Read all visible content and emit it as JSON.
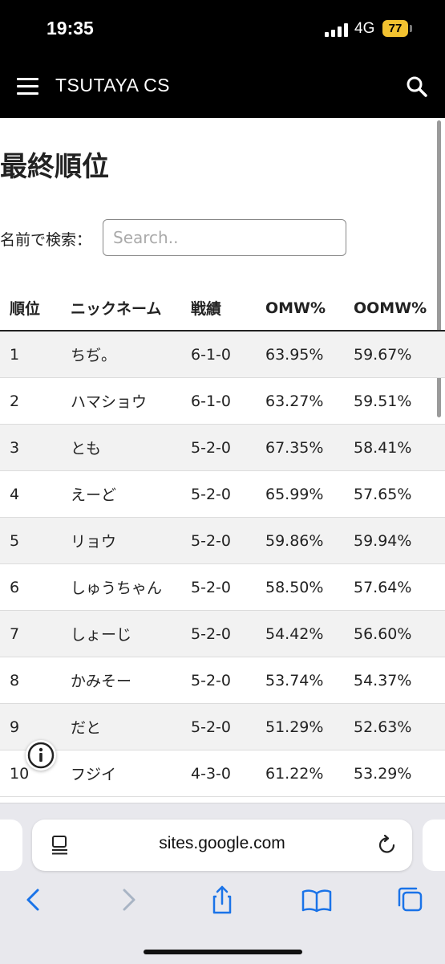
{
  "status_bar": {
    "time": "19:35",
    "network": "4G",
    "battery": "77"
  },
  "header": {
    "site_title": "TSUTAYA CS",
    "menu_icon": "hamburger-menu-icon",
    "search_icon": "search-icon"
  },
  "main": {
    "title": "最終順位",
    "search": {
      "label": "名前で検索：",
      "placeholder": "Search..",
      "value": ""
    },
    "table": {
      "columns": [
        "順位",
        "ニックネーム",
        "戦績",
        "OMW%",
        "OOMW%"
      ],
      "rows": [
        {
          "rank": "1",
          "name": "ちぢ。",
          "record": "6-1-0",
          "omw": "63.95%",
          "oomw": "59.67%"
        },
        {
          "rank": "2",
          "name": "ハマショウ",
          "record": "6-1-0",
          "omw": "63.27%",
          "oomw": "59.51%"
        },
        {
          "rank": "3",
          "name": "とも",
          "record": "5-2-0",
          "omw": "67.35%",
          "oomw": "58.41%"
        },
        {
          "rank": "4",
          "name": "えーど",
          "record": "5-2-0",
          "omw": "65.99%",
          "oomw": "57.65%"
        },
        {
          "rank": "5",
          "name": "リョウ",
          "record": "5-2-0",
          "omw": "59.86%",
          "oomw": "59.94%"
        },
        {
          "rank": "6",
          "name": "しゅうちゃん",
          "record": "5-2-0",
          "omw": "58.50%",
          "oomw": "57.64%"
        },
        {
          "rank": "7",
          "name": "しょーじ",
          "record": "5-2-0",
          "omw": "54.42%",
          "oomw": "56.60%"
        },
        {
          "rank": "8",
          "name": "かみそー",
          "record": "5-2-0",
          "omw": "53.74%",
          "oomw": "54.37%"
        },
        {
          "rank": "9",
          "name": "だと",
          "record": "5-2-0",
          "omw": "51.29%",
          "oomw": "52.63%"
        },
        {
          "rank": "10",
          "name": "フジイ",
          "record": "4-3-0",
          "omw": "61.22%",
          "oomw": "53.29%"
        }
      ]
    }
  },
  "browser": {
    "url": "sites.google.com",
    "icons": [
      "page-menu-icon",
      "reload-icon",
      "back-icon",
      "forward-icon",
      "share-icon",
      "bookmarks-icon",
      "tabs-icon",
      "info-icon"
    ]
  },
  "colors": {
    "header_bg": "#000000",
    "battery": "#f2c230",
    "toolbar_blue": "#1a73e8",
    "row_stripe": "#f2f2f2"
  }
}
